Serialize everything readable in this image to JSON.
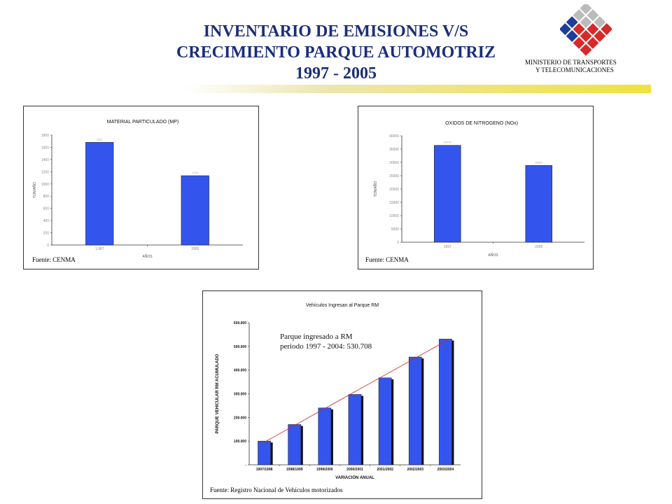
{
  "header": {
    "title_line1": "INVENTARIO DE EMISIONES V/S",
    "title_line2": "CRECIMIENTO PARQUE AUTOMOTRIZ",
    "title_line3": "1997 - 2005",
    "ministry_line1": "MINISTERIO DE TRANSPORTES",
    "ministry_line2": "Y TELECOMUNICACIONES"
  },
  "colors": {
    "bar": "#3355ee",
    "title": "#1a2e7a",
    "trend": "#cc2222"
  },
  "chart_data": [
    {
      "type": "bar",
      "title": "MATERIAL PARTICULADO (MP)",
      "xlabel": "AÑOS",
      "ylabel": "TON/AÑO",
      "categories": [
        "1.997",
        "2005"
      ],
      "values": [
        1681,
        1135
      ],
      "data_labels": [
        "1681",
        "1135"
      ],
      "ylim": [
        0,
        1800
      ],
      "yticks": [
        "0",
        "200",
        "400",
        "600",
        "800",
        "1000",
        "1200",
        "1400",
        "1600",
        "1800"
      ],
      "source": "Fuente: CENMA"
    },
    {
      "type": "bar",
      "title": "OXIDOS DE NITROGENO (NOx)",
      "xlabel": "AÑOS",
      "ylabel": "TON/AÑO",
      "categories": [
        "1997",
        "2005"
      ],
      "values": [
        36406,
        28853
      ],
      "data_labels": [
        "36406",
        "28853"
      ],
      "ylim": [
        0,
        40000
      ],
      "yticks": [
        "0",
        "5000",
        "10000",
        "15000",
        "20000",
        "25000",
        "30000",
        "35000",
        "40000"
      ],
      "source": "Fuente: CENMA"
    },
    {
      "type": "bar",
      "title": "Vehículos Ingresan al Parque RM",
      "xlabel": "VARIACIÓN ANUAL",
      "ylabel": "PARQUE VEHICULAR RM ACUMULADO",
      "categories": [
        "1997/1998",
        "1998/1999",
        "1999/2000",
        "2000/2001",
        "2001/2002",
        "2002/2003",
        "2003/2004"
      ],
      "values": [
        100000,
        170000,
        240000,
        297000,
        367000,
        455000,
        530708
      ],
      "ylim": [
        0,
        600000
      ],
      "yticks": [
        "-",
        "100.000",
        "200.000",
        "300.000",
        "400.000",
        "500.000",
        "600.000"
      ],
      "trendline": true,
      "annotation_line1": "Parque ingresado a RM",
      "annotation_line2": "periodo 1997 - 2004: 530.708",
      "source": "Fuente: Registro Nacional de Vehículos motorizados"
    }
  ]
}
